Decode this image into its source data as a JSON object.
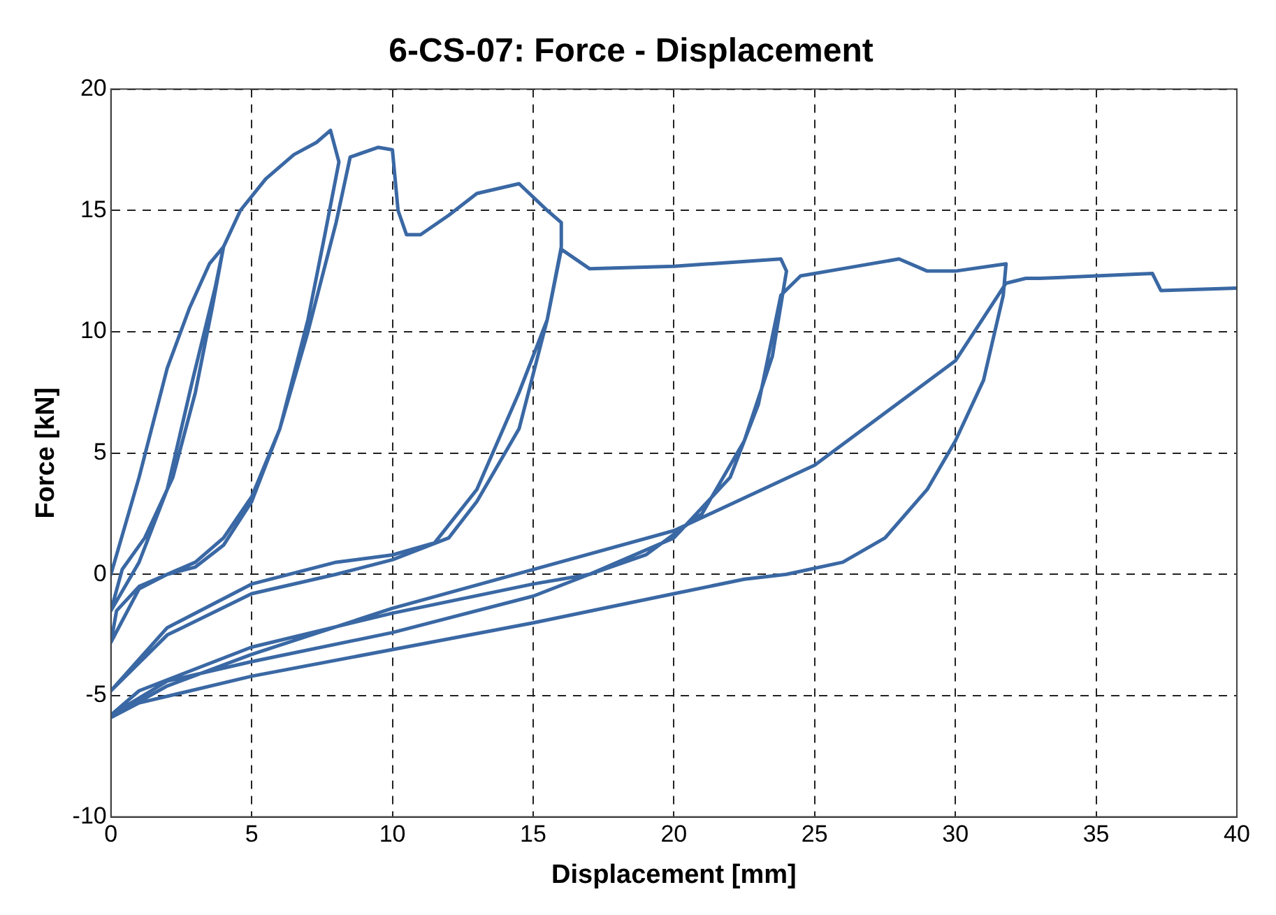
{
  "chart_data": {
    "type": "line",
    "title": "6-CS-07: Force - Displacement",
    "xlabel": "Displacement [mm]",
    "ylabel": "Force [kN]",
    "xlim": [
      0,
      40
    ],
    "ylim": [
      -10,
      20
    ],
    "xticks": [
      0,
      5,
      10,
      15,
      20,
      25,
      30,
      35,
      40
    ],
    "yticks": [
      -10,
      -5,
      0,
      5,
      10,
      15,
      20
    ],
    "grid": true,
    "marker": "none",
    "line_style": "solid",
    "series": [
      {
        "color": "#3a68a4",
        "x": [
          0,
          1,
          2,
          2.8,
          3.5,
          4,
          3.6,
          3,
          2.2,
          1.2,
          0.4,
          0,
          1,
          2,
          2.9,
          3.7,
          4,
          4.6,
          5.5,
          6.5,
          7.3,
          7.8,
          8.1,
          7.6,
          7,
          6,
          5,
          4,
          3,
          2,
          1,
          0,
          0.2,
          1,
          2,
          3,
          4,
          5,
          6,
          7,
          8,
          8.5,
          9.5,
          10,
          10.2,
          10.5,
          11,
          12,
          13,
          14.5,
          15.5,
          16,
          16,
          15.5,
          14.5,
          13,
          12,
          10,
          8,
          5,
          2,
          0,
          2,
          5,
          8,
          10,
          11.5,
          13,
          14.5,
          15.5,
          16,
          17,
          20,
          23.8,
          24,
          23.5,
          22.5,
          21,
          19,
          17,
          15,
          10,
          5,
          1,
          0,
          2,
          5,
          10,
          15,
          17,
          20,
          22,
          23,
          23.8,
          24.5,
          26,
          28,
          29,
          30,
          31.8,
          31.7,
          31,
          30,
          29,
          27.5,
          26,
          24,
          22.5,
          20,
          15,
          10,
          5,
          1,
          0,
          2,
          5,
          10,
          15,
          20,
          25,
          30,
          31.8,
          32.5,
          33,
          35,
          37,
          37.3,
          40
        ],
        "values": [
          0,
          4,
          8.5,
          11,
          12.8,
          13.5,
          11,
          7.5,
          4,
          1.5,
          0.2,
          -1.5,
          0.5,
          3.5,
          8,
          11.8,
          13.5,
          15,
          16.3,
          17.3,
          17.8,
          18.3,
          17,
          14,
          10.5,
          6,
          3.2,
          1.5,
          0.5,
          0,
          -0.6,
          -2.8,
          -1.5,
          -0.5,
          0,
          0.3,
          1.2,
          3,
          6,
          10,
          14.5,
          17.2,
          17.6,
          17.5,
          15,
          14,
          14,
          14.8,
          15.7,
          16.1,
          15,
          14.5,
          13.5,
          10.5,
          6,
          3,
          1.5,
          0.6,
          0,
          -0.8,
          -2.5,
          -4.8,
          -2.2,
          -0.4,
          0.5,
          0.8,
          1.3,
          3.5,
          7.5,
          10.5,
          13.4,
          12.6,
          12.7,
          13,
          12.5,
          9,
          5.5,
          2.5,
          0.8,
          0,
          -0.4,
          -1.6,
          -3,
          -4.8,
          -5.8,
          -4.4,
          -3.6,
          -2.4,
          -0.9,
          0,
          1.5,
          4,
          7,
          11.5,
          12.3,
          12.6,
          13,
          12.5,
          12.5,
          12.8,
          11.5,
          8,
          5.5,
          3.5,
          1.5,
          0.5,
          0,
          -0.2,
          -0.8,
          -2,
          -3.1,
          -4.2,
          -5.3,
          -5.9,
          -4.6,
          -3.3,
          -1.4,
          0.2,
          1.8,
          4.5,
          8.8,
          12,
          12.2,
          12.2,
          12.3,
          12.4,
          11.7,
          11.8
        ]
      }
    ]
  }
}
